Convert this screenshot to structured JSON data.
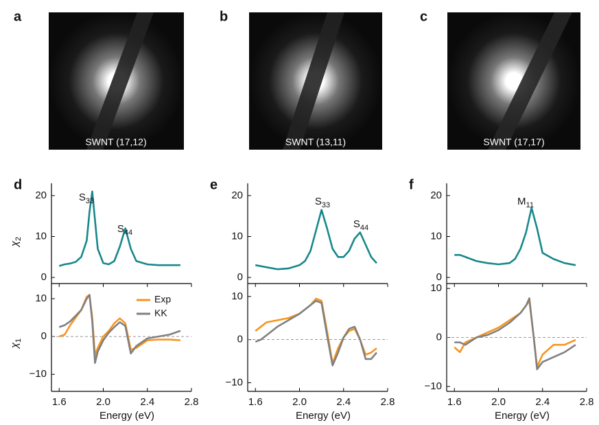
{
  "images": [
    {
      "label": "a",
      "caption": "SWNT (17,12)"
    },
    {
      "label": "b",
      "caption": "SWNT (13,11)"
    },
    {
      "label": "c",
      "caption": "SWNT (17,17)"
    }
  ],
  "chart_data": [
    {
      "type": "line",
      "panel": "d",
      "ylabel": {
        "text": "χ",
        "sub": "2"
      },
      "xlim": [
        1.53,
        2.8
      ],
      "ylim": [
        -1.5,
        23
      ],
      "yticks": [
        0,
        10,
        20
      ],
      "x": [
        1.6,
        1.65,
        1.7,
        1.75,
        1.8,
        1.85,
        1.875,
        1.9,
        1.925,
        1.95,
        2.0,
        2.05,
        2.1,
        2.15,
        2.2,
        2.25,
        2.3,
        2.4,
        2.5,
        2.6,
        2.7
      ],
      "series": [
        {
          "color": "#16878a",
          "values": [
            2.8,
            3.2,
            3.4,
            3.8,
            5,
            9,
            16,
            21,
            14,
            7,
            3.5,
            3.2,
            4,
            7.5,
            12,
            7,
            4,
            3.2,
            3,
            3,
            3
          ]
        }
      ],
      "annotations": [
        {
          "text": "S",
          "sub": "33"
        },
        {
          "text": "S",
          "sub": "44"
        }
      ]
    },
    {
      "type": "line",
      "ylabel": {
        "text": "χ",
        "sub": "1"
      },
      "xlabel": "Energy (eV)",
      "xlim": [
        1.53,
        2.8
      ],
      "ylim": [
        -14.5,
        14
      ],
      "yticks": [
        {
          "value": -10,
          "label": "−10"
        },
        0,
        10
      ],
      "xticks": [
        1.6,
        {
          "value": 2,
          "label": "2.0"
        },
        2.4,
        2.8
      ],
      "legend": "upper right",
      "x": [
        1.6,
        1.65,
        1.7,
        1.75,
        1.8,
        1.85,
        1.875,
        1.9,
        1.925,
        1.95,
        2.0,
        2.05,
        2.1,
        2.15,
        2.2,
        2.25,
        2.3,
        2.4,
        2.5,
        2.6,
        2.7
      ],
      "series": [
        {
          "name": "Exp",
          "color": "#f7941d",
          "values": [
            0,
            0.5,
            3,
            5,
            7,
            10.5,
            11,
            5,
            -5,
            -3,
            0,
            1.5,
            3.5,
            4.8,
            3.5,
            -3.5,
            -3,
            -1,
            -0.8,
            -0.8,
            -1
          ]
        },
        {
          "name": "KK",
          "color": "#808080",
          "values": [
            2.5,
            3,
            4,
            5.5,
            7,
            10,
            11,
            4,
            -7,
            -4,
            -1,
            1,
            2.5,
            3.8,
            2.8,
            -4.5,
            -2.5,
            -0.5,
            0,
            0.5,
            1.5
          ]
        }
      ]
    },
    {
      "type": "line",
      "panel": "e",
      "xlim": [
        1.53,
        2.8
      ],
      "ylim": [
        -1.5,
        23
      ],
      "yticks": [
        0,
        10,
        20
      ],
      "x": [
        1.6,
        1.7,
        1.8,
        1.9,
        2.0,
        2.05,
        2.1,
        2.15,
        2.2,
        2.25,
        2.3,
        2.35,
        2.4,
        2.45,
        2.5,
        2.55,
        2.6,
        2.65,
        2.7
      ],
      "series": [
        {
          "color": "#16878a",
          "values": [
            3,
            2.5,
            2,
            2.2,
            3,
            4,
            6.5,
            11.5,
            16.5,
            12,
            7,
            5,
            5,
            6.5,
            9.5,
            11,
            8,
            5,
            3.5
          ]
        }
      ],
      "annotations": [
        {
          "text": "S",
          "sub": "33"
        },
        {
          "text": "S",
          "sub": "44"
        }
      ]
    },
    {
      "type": "line",
      "xlabel": "Energy (eV)",
      "xlim": [
        1.53,
        2.8
      ],
      "ylim": [
        -12,
        13
      ],
      "yticks": [
        {
          "value": -10,
          "label": "−10"
        },
        0,
        10
      ],
      "xticks": [
        1.6,
        {
          "value": 2,
          "label": "2.0"
        },
        2.4,
        2.8
      ],
      "x": [
        1.6,
        1.65,
        1.7,
        1.8,
        1.9,
        2.0,
        2.1,
        2.15,
        2.2,
        2.25,
        2.3,
        2.35,
        2.4,
        2.45,
        2.5,
        2.55,
        2.6,
        2.65,
        2.7
      ],
      "series": [
        {
          "color": "#f7941d",
          "values": [
            2,
            3,
            4,
            4.5,
            5,
            6,
            8,
            9.5,
            9,
            2,
            -5.5,
            -2,
            0.5,
            2,
            2.5,
            0,
            -3.5,
            -3,
            -2
          ]
        },
        {
          "color": "#808080",
          "values": [
            -0.5,
            0,
            1,
            3,
            4.5,
            6,
            8,
            9,
            8.5,
            1,
            -6,
            -3,
            0.5,
            2.5,
            3,
            0,
            -4.5,
            -4.5,
            -3
          ]
        }
      ]
    },
    {
      "type": "line",
      "panel": "f",
      "xlim": [
        1.53,
        2.8
      ],
      "ylim": [
        -1.5,
        23
      ],
      "yticks": [
        0,
        10,
        20
      ],
      "x": [
        1.6,
        1.65,
        1.7,
        1.8,
        1.9,
        2.0,
        2.1,
        2.15,
        2.2,
        2.25,
        2.3,
        2.35,
        2.4,
        2.5,
        2.6,
        2.7
      ],
      "series": [
        {
          "color": "#16878a",
          "values": [
            5.5,
            5.5,
            5,
            4,
            3.5,
            3.2,
            3.5,
            4.5,
            7,
            11,
            17,
            12,
            6,
            4.5,
            3.5,
            3
          ]
        }
      ],
      "annotations": [
        {
          "text": "M",
          "sub": "11"
        }
      ]
    },
    {
      "type": "line",
      "xlabel": "Energy (eV)",
      "xlim": [
        1.53,
        2.8
      ],
      "ylim": [
        -11,
        11
      ],
      "yticks": [
        {
          "value": -10,
          "label": "−10"
        },
        0,
        10
      ],
      "xticks": [
        1.6,
        {
          "value": 2,
          "label": "2.0"
        },
        2.4,
        2.8
      ],
      "x": [
        1.6,
        1.65,
        1.7,
        1.8,
        1.9,
        2.0,
        2.1,
        2.2,
        2.25,
        2.28,
        2.32,
        2.35,
        2.4,
        2.5,
        2.6,
        2.7
      ],
      "series": [
        {
          "color": "#f7941d",
          "values": [
            -2,
            -3,
            -1,
            0,
            1,
            2,
            3.5,
            5,
            6.5,
            7.5,
            0,
            -6,
            -3.5,
            -1.5,
            -1.5,
            -0.5
          ]
        },
        {
          "color": "#808080",
          "values": [
            -1,
            -1,
            -1.5,
            0,
            0.5,
            1.5,
            3,
            5,
            6.5,
            8,
            0,
            -6.5,
            -5,
            -4,
            -3,
            -1.5
          ]
        }
      ]
    }
  ]
}
